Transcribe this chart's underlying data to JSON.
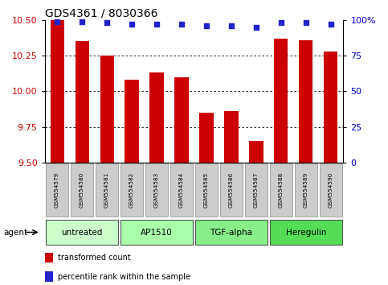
{
  "title": "GDS4361 / 8030366",
  "samples": [
    "GSM554579",
    "GSM554580",
    "GSM554581",
    "GSM554582",
    "GSM554583",
    "GSM554584",
    "GSM554585",
    "GSM554586",
    "GSM554587",
    "GSM554588",
    "GSM554589",
    "GSM554590"
  ],
  "bar_values": [
    10.5,
    10.35,
    10.25,
    10.08,
    10.13,
    10.1,
    9.85,
    9.86,
    9.65,
    10.37,
    10.36,
    10.28
  ],
  "percentile_values": [
    99,
    99,
    98,
    97,
    97,
    97,
    96,
    96,
    95,
    98,
    98,
    97
  ],
  "ylim_left": [
    9.5,
    10.5
  ],
  "ylim_right": [
    0,
    100
  ],
  "yticks_left": [
    9.5,
    9.75,
    10.0,
    10.25,
    10.5
  ],
  "yticks_right": [
    0,
    25,
    50,
    75,
    100
  ],
  "bar_color": "#cc0000",
  "dot_color": "#2222cc",
  "agent_groups": [
    {
      "label": "untreated",
      "start": 0,
      "end": 3,
      "color": "#ccffcc"
    },
    {
      "label": "AP1510",
      "start": 3,
      "end": 6,
      "color": "#aaffaa"
    },
    {
      "label": "TGF-alpha",
      "start": 6,
      "end": 9,
      "color": "#88ee88"
    },
    {
      "label": "Heregulin",
      "start": 9,
      "end": 12,
      "color": "#55dd55"
    }
  ],
  "legend_bar_color": "#cc0000",
  "legend_dot_color": "#2222cc",
  "bar_width": 0.55,
  "tick_label_color_left": "#cc0000",
  "tick_label_color_right": "#0000cc",
  "grid_color": "#000000",
  "background_color": "#ffffff",
  "plot_bg": "#ffffff",
  "agent_label": "agent",
  "label_box_color": "#cccccc",
  "label_box_edge": "#999999"
}
